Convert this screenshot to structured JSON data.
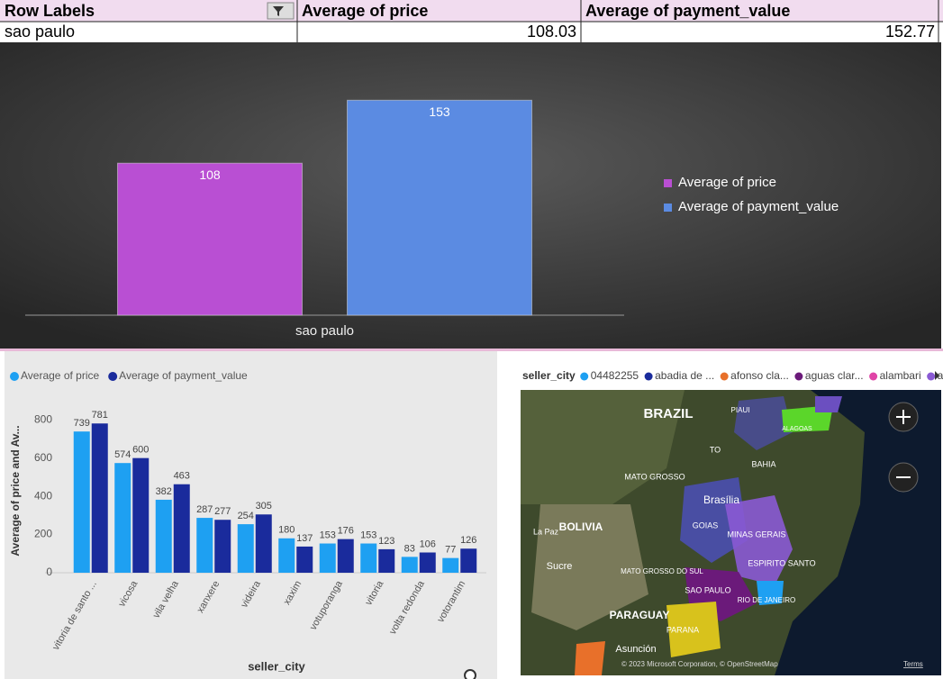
{
  "table": {
    "header": [
      "Row Labels",
      "Average of price",
      "Average of payment_value"
    ],
    "rows": [
      [
        "sao paulo",
        108.03,
        152.77
      ]
    ]
  },
  "chart_data": [
    {
      "type": "bar",
      "categories": [
        "sao paulo"
      ],
      "series": [
        {
          "name": "Average of price",
          "color": "#b94fd3",
          "values": [
            108.03
          ],
          "value_labels": [
            "108"
          ]
        },
        {
          "name": "Average of payment_value",
          "color": "#5b8be2",
          "values": [
            152.77
          ],
          "value_labels": [
            "153"
          ]
        }
      ],
      "ylim": [
        0,
        160
      ],
      "legend": "right"
    },
    {
      "type": "bar",
      "x_label": "seller_city",
      "y_label": "Average of price and Av...",
      "categories": [
        "vitoria de santo ...",
        "vicosa",
        "vila velha",
        "xanxere",
        "videira",
        "xaxim",
        "votuporanga",
        "vitoria",
        "volta redonda",
        "votorantim"
      ],
      "series": [
        {
          "name": "Average of price",
          "color": "#1ea0f2",
          "values": [
            739,
            574,
            382,
            287,
            254,
            180,
            153,
            153,
            83,
            77
          ]
        },
        {
          "name": "Average of payment_value",
          "color": "#1a2b9c",
          "values": [
            781,
            600,
            463,
            277,
            305,
            137,
            176,
            123,
            106,
            126
          ]
        }
      ],
      "ylim": [
        0,
        900
      ],
      "yticks": [
        0,
        200,
        400,
        600,
        800
      ],
      "legend": "top-left"
    }
  ],
  "map": {
    "legend_title": "seller_city",
    "legend": [
      {
        "name": "04482255",
        "color": "#1ea0f2"
      },
      {
        "name": "abadia de ...",
        "color": "#1a2b9c"
      },
      {
        "name": "afonso cla...",
        "color": "#e8702a"
      },
      {
        "name": "aguas clar...",
        "color": "#6b1a7a"
      },
      {
        "name": "alambari",
        "color": "#e044a7"
      },
      {
        "name": "alfenas",
        "color": "#8a5ad4"
      }
    ],
    "labels": [
      "BRAZIL",
      "PIAUI",
      "ALAGOAS",
      "TO",
      "BAHIA",
      "MATO GROSSO",
      "Brasília",
      "GOIAS",
      "MINAS GERAIS",
      "BOLIVIA",
      "La Paz",
      "Sucre",
      "MATO GROSSO DO SUL",
      "ESPIRITO SANTO",
      "SAO PAULO",
      "RIO DE JANEIRO",
      "PARANA",
      "PARAGUAY",
      "Asunción"
    ],
    "attribution": "© 2023 Microsoft Corporation, © OpenStreetMap",
    "terms": "Terms"
  }
}
